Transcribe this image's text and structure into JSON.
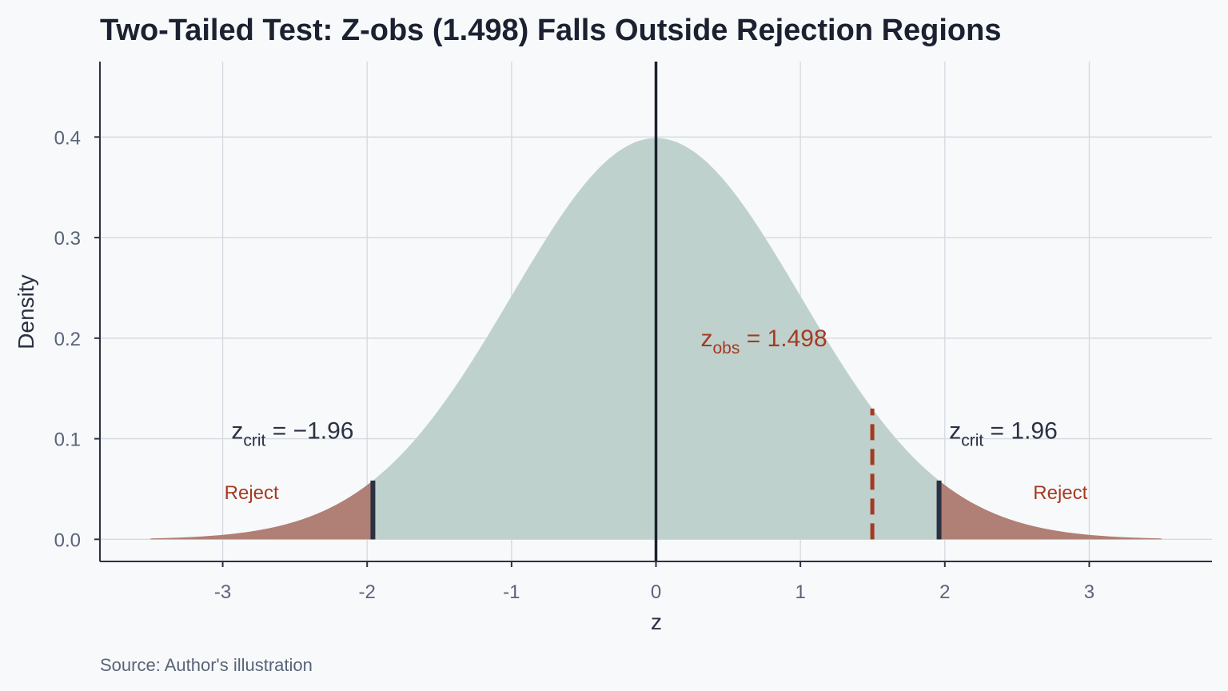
{
  "chart_data": {
    "type": "area",
    "title": "Two-Tailed Test: Z-obs (1.498) Falls Outside Rejection Regions",
    "xlabel": "z",
    "ylabel": "Density",
    "caption": "Source: Author's illustration",
    "xlim": [
      -3.85,
      3.85
    ],
    "ylim": [
      -0.022,
      0.475
    ],
    "x_ticks": [
      -3,
      -2,
      -1,
      0,
      1,
      2,
      3
    ],
    "x_tick_labels": [
      "-3",
      "-2",
      "-1",
      "0",
      "1",
      "2",
      "3"
    ],
    "y_ticks": [
      0.0,
      0.1,
      0.2,
      0.3,
      0.4
    ],
    "y_tick_labels": [
      "0.0",
      "0.1",
      "0.2",
      "0.3",
      "0.4"
    ],
    "grid": true,
    "distribution": {
      "name": "standard normal",
      "mean": 0,
      "sd": 1,
      "x_range": [
        -3.5,
        3.5
      ]
    },
    "critical_values": [
      -1.96,
      1.96
    ],
    "z_obs": 1.498,
    "mean_line": 0,
    "z_obs_line_top": 0.13,
    "annotations": {
      "crit_left": {
        "x": -2.94,
        "y": 0.1,
        "main": "z",
        "sub": "crit",
        "rest": " = −1.96"
      },
      "crit_right": {
        "x": 2.03,
        "y": 0.1,
        "main": "z",
        "sub": "crit",
        "rest": " = 1.96"
      },
      "obs": {
        "x": 0.31,
        "y": 0.192,
        "main": "z",
        "sub": "obs",
        "rest": " = 1.498"
      },
      "reject_left": {
        "x": -2.8,
        "y": 0.04,
        "text": "Reject"
      },
      "reject_right": {
        "x": 2.8,
        "y": 0.04,
        "text": "Reject"
      }
    },
    "colors": {
      "acceptance_fill": "#bfd1cc",
      "rejection_fill": "#b07f75",
      "critical_line": "#2a3142",
      "mean_line": "#1b2130",
      "z_obs_line": "#a53a22",
      "z_obs_text": "#a53a22",
      "reject_text": "#a53a22",
      "grid": "#d5d9e0",
      "axis": "#2a3142",
      "tick_text": "#5a6478",
      "title": "#1b2130",
      "label": "#2a3142",
      "caption": "#5a6478"
    }
  }
}
